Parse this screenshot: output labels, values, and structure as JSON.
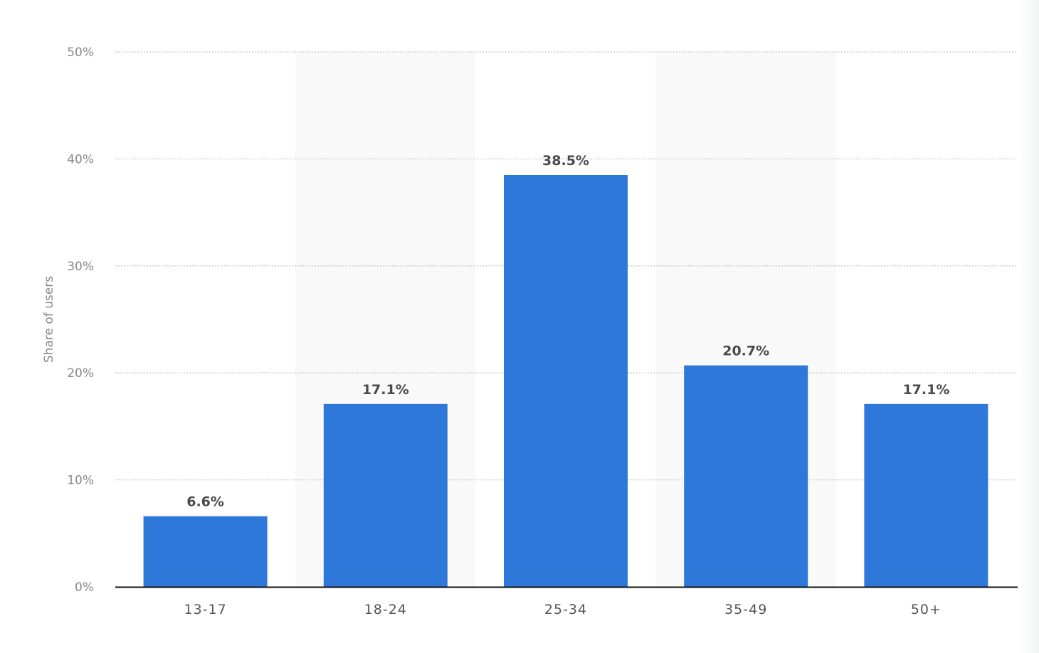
{
  "chart_data": {
    "type": "bar",
    "categories": [
      "13-17",
      "18-24",
      "25-34",
      "35-49",
      "50+"
    ],
    "values": [
      6.6,
      17.1,
      38.5,
      20.7,
      17.1
    ],
    "data_labels": [
      "6.6%",
      "17.1%",
      "38.5%",
      "20.7%",
      "17.1%"
    ],
    "title": "",
    "xlabel": "",
    "ylabel": "Share of users",
    "ylim": [
      0,
      50
    ],
    "yticks": [
      0,
      10,
      20,
      30,
      40,
      50
    ],
    "ytick_labels": [
      "0%",
      "10%",
      "20%",
      "30%",
      "40%",
      "50%"
    ],
    "grid": true,
    "legend": "none",
    "bar_color": "#2e78d9",
    "band_color": "#f9f9f9"
  }
}
